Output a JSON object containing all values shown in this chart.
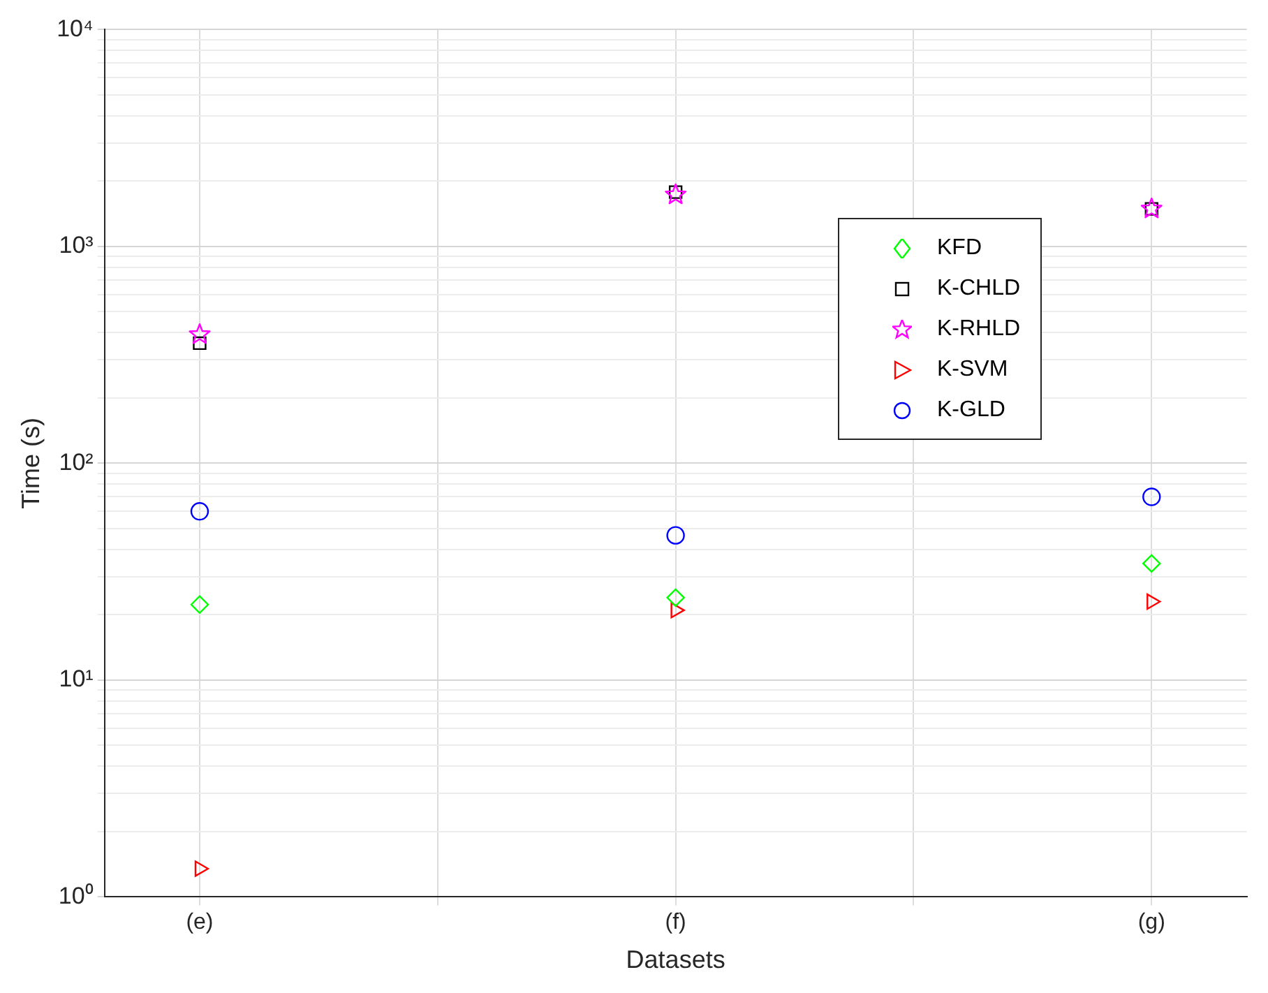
{
  "chart_data": {
    "type": "scatter",
    "xlabel": "Datasets",
    "ylabel": "Time (s)",
    "categories": [
      "(e)",
      "(f)",
      "(g)"
    ],
    "log": "y",
    "ylim": [
      1,
      10000
    ],
    "yticks": [
      {
        "value": 1,
        "label": "10⁰"
      },
      {
        "value": 2,
        "label": null
      },
      {
        "value": 3,
        "label": null
      },
      {
        "value": 4,
        "label": null
      },
      {
        "value": 5,
        "label": null
      },
      {
        "value": 6,
        "label": null
      },
      {
        "value": 7,
        "label": null
      },
      {
        "value": 8,
        "label": null
      },
      {
        "value": 9,
        "label": null
      },
      {
        "value": 10,
        "label": "10¹"
      },
      {
        "value": 20,
        "label": null
      },
      {
        "value": 30,
        "label": null
      },
      {
        "value": 40,
        "label": null
      },
      {
        "value": 50,
        "label": null
      },
      {
        "value": 60,
        "label": null
      },
      {
        "value": 70,
        "label": null
      },
      {
        "value": 80,
        "label": null
      },
      {
        "value": 90,
        "label": null
      },
      {
        "value": 100,
        "label": "10²"
      },
      {
        "value": 200,
        "label": null
      },
      {
        "value": 300,
        "label": null
      },
      {
        "value": 400,
        "label": null
      },
      {
        "value": 500,
        "label": null
      },
      {
        "value": 600,
        "label": null
      },
      {
        "value": 700,
        "label": null
      },
      {
        "value": 800,
        "label": null
      },
      {
        "value": 900,
        "label": null
      },
      {
        "value": 1000,
        "label": "10³"
      },
      {
        "value": 2000,
        "label": null
      },
      {
        "value": 3000,
        "label": null
      },
      {
        "value": 4000,
        "label": null
      },
      {
        "value": 5000,
        "label": null
      },
      {
        "value": 6000,
        "label": null
      },
      {
        "value": 7000,
        "label": null
      },
      {
        "value": 8000,
        "label": null
      },
      {
        "value": 9000,
        "label": null
      },
      {
        "value": 10000,
        "label": "10⁴"
      }
    ],
    "grid": true,
    "legend": "top right",
    "series": [
      {
        "name": "KFD",
        "color": "#00ff00",
        "marker": "diamond",
        "values": [
          22.3,
          24,
          34.5
        ]
      },
      {
        "name": "K-CHLD",
        "color": "#000000",
        "marker": "square",
        "values": [
          358,
          1780,
          1490
        ]
      },
      {
        "name": "K-RHLD",
        "color": "#ff00ff",
        "marker": "star",
        "values": [
          392,
          1730,
          1490
        ]
      },
      {
        "name": "K-SVM",
        "color": "#ff0000",
        "marker": "triangle",
        "values": [
          1.35,
          21,
          23
        ]
      },
      {
        "name": "K-GLD",
        "color": "#0000ff",
        "marker": "circle",
        "values": [
          60,
          46.5,
          70
        ]
      }
    ]
  }
}
